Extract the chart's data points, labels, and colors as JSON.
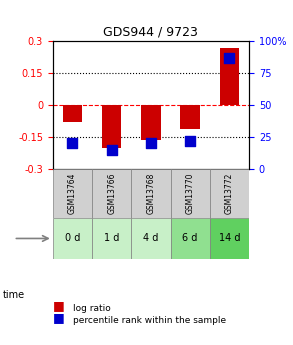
{
  "title": "GDS944 / 9723",
  "samples": [
    "GSM13764",
    "GSM13766",
    "GSM13768",
    "GSM13770",
    "GSM13772"
  ],
  "time_labels": [
    "0 d",
    "1 d",
    "4 d",
    "6 d",
    "14 d"
  ],
  "log_ratio": [
    -0.08,
    -0.2,
    -0.165,
    -0.11,
    0.27
  ],
  "percentile_rank": [
    20,
    15,
    20,
    22,
    87
  ],
  "ylim_left": [
    -0.3,
    0.3
  ],
  "ylim_right": [
    0,
    100
  ],
  "yticks_left": [
    -0.3,
    -0.15,
    0,
    0.15,
    0.3
  ],
  "yticks_right": [
    0,
    25,
    50,
    75,
    100
  ],
  "bar_color": "#cc0000",
  "dot_color": "#0000cc",
  "grid_color": "#000000",
  "zero_line_color": "#cc0000",
  "bg_color": "#f0f0f0",
  "sample_bg": "#d0d0d0",
  "time_bg_colors": [
    "#c8f0c8",
    "#c8f0c8",
    "#c8f0c8",
    "#90e090",
    "#60d060"
  ],
  "bar_width": 0.5,
  "dot_size": 60
}
